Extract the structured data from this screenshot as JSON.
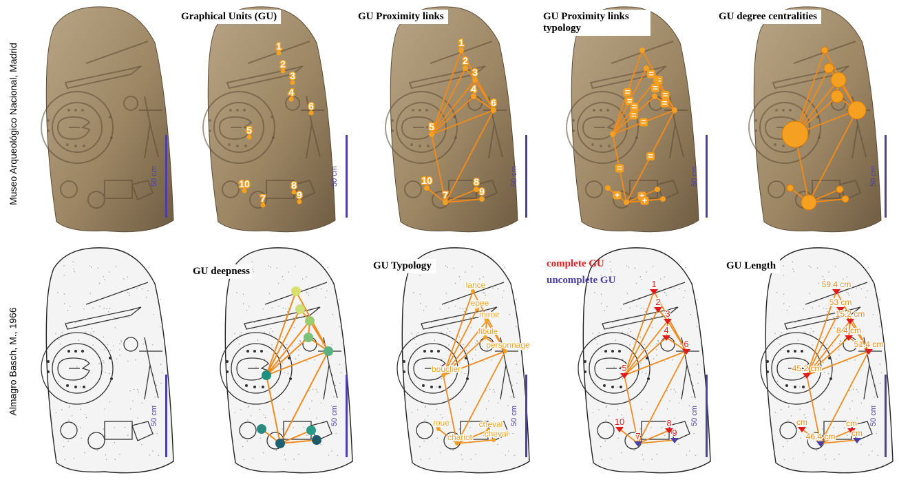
{
  "row_labels": {
    "top": "Museo Arqueológico Nacional, Madrid",
    "bottom": "Almagro Basch, M., 1966"
  },
  "scale_label": "50 cm",
  "panel_titles": {
    "gu": "Graphical Units (GU)",
    "links": "GU Proximity links",
    "typology_links": "GU Proximity links typology",
    "centralities": "GU degree centralities",
    "deepness": "GU deepness",
    "typology": "GU Typology",
    "length": "GU Length"
  },
  "completeness_legend": {
    "complete": "complete GU",
    "incomplete": "uncomplete GU"
  },
  "colors": {
    "node_orange": "#f5a020",
    "link_orange": "#ef8a1d",
    "scale_blue": "#4b3fa6",
    "complete_red": "#e31a1c",
    "incomplete_blue": "#4b3fa6",
    "stone_brown": "#a08a6a"
  },
  "graph": {
    "node_ids": [
      "1",
      "2",
      "3",
      "4",
      "5",
      "6",
      "7",
      "8",
      "9",
      "10"
    ],
    "link_types": [
      "=",
      "+"
    ],
    "types": {
      "1": "lance",
      "2": "epee",
      "3": "miroir",
      "4": "fibule",
      "5": "bouclier",
      "6": "personnage",
      "7": "chariot",
      "8": "cheval",
      "9": "cheval",
      "10": "roue"
    },
    "lengths": {
      "1": "59.4 cm",
      "2": "53 cm",
      "3": "15.2 cm",
      "4": "8.4 cm",
      "5": "45.2 cm",
      "6": "51.4 cm",
      "7": "46.4 cm",
      "8": "cm",
      "9": "cm",
      "10": "cm"
    },
    "completeness": {
      "1": "complete",
      "2": "complete",
      "3": "complete",
      "4": "complete",
      "5": "complete",
      "6": "complete",
      "7": "incomplete",
      "8": "complete",
      "9": "incomplete",
      "10": "complete"
    },
    "degree": {
      "1": 1,
      "2": 2,
      "3": 4,
      "4": 3,
      "5": 8,
      "6": 5,
      "7": 4,
      "8": 1,
      "9": 1,
      "10": 1
    },
    "depth_colors": {
      "1": "#d8e06a",
      "2": "#cde07a",
      "3": "#9ccb70",
      "4": "#7cc07a",
      "5": "#1e9080",
      "6": "#5ab07e",
      "7": "#1f6070",
      "8": "#2a9a88",
      "9": "#1e5a68",
      "10": "#2a8a80"
    }
  }
}
